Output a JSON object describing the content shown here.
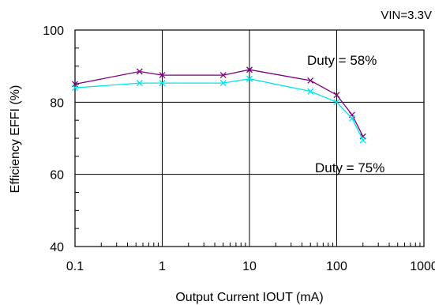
{
  "chart_data": {
    "type": "line",
    "title": "",
    "header_note": "VIN=3.3V",
    "xlabel": "Output Current IOUT (mA)",
    "ylabel": "Efficiency EFFI (%)",
    "x_scale": "log",
    "xlim": [
      0.1,
      1000
    ],
    "ylim": [
      40,
      100
    ],
    "x_ticks": [
      0.1,
      1,
      10,
      100,
      1000
    ],
    "x_tick_labels": [
      "0.1",
      "1",
      "10",
      "100",
      "1000"
    ],
    "y_ticks": [
      40,
      60,
      80,
      100
    ],
    "y_tick_labels": [
      "40",
      "60",
      "80",
      "100"
    ],
    "grid": true,
    "series": [
      {
        "name": "Duty =  58%",
        "color": "#800080",
        "marker": "x",
        "x": [
          0.1,
          0.55,
          1,
          5,
          10,
          50,
          100,
          150,
          200
        ],
        "y": [
          85,
          88.5,
          87.5,
          87.5,
          89,
          86,
          82,
          76.5,
          70.5
        ]
      },
      {
        "name": "Duty = 75%",
        "color": "#00e5ee",
        "marker": "x",
        "x": [
          0.1,
          0.55,
          1,
          5,
          10,
          50,
          100,
          150,
          200
        ],
        "y": [
          84,
          85.3,
          85.3,
          85.3,
          86.5,
          83,
          80,
          75.5,
          69.5
        ]
      }
    ]
  }
}
